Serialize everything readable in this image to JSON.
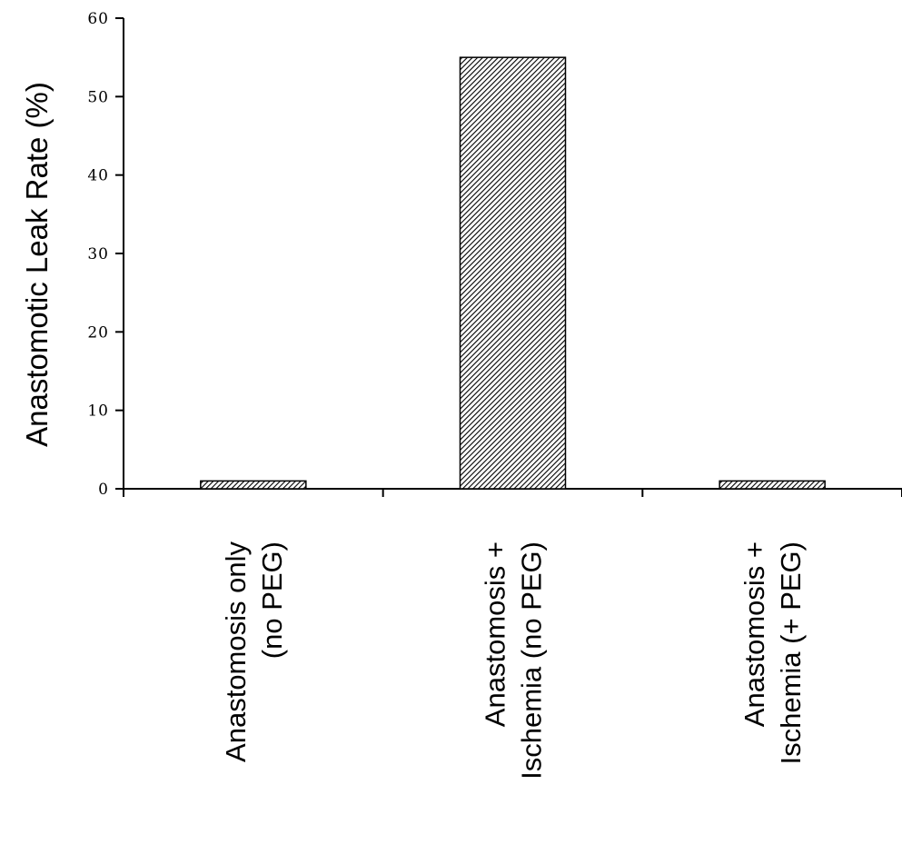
{
  "chart_data": {
    "type": "bar",
    "categories": [
      [
        "Anastomosis only",
        "(no PEG)"
      ],
      [
        "Anastomosis +",
        "Ischemia (no PEG)"
      ],
      [
        "Anastomosis +",
        "Ischemia (+ PEG)"
      ]
    ],
    "values": [
      1,
      55,
      1
    ],
    "title": "",
    "xlabel": "",
    "ylabel": "Anastomotic Leak Rate (%)",
    "ylim": [
      0,
      60
    ],
    "yticks": [
      0,
      10,
      20,
      30,
      40,
      50,
      60
    ],
    "bar_fill": "hatched",
    "grid": false,
    "legend": "none"
  },
  "colors": {
    "axis": "#000000",
    "bar_hatch": "#000000",
    "background": "#ffffff"
  }
}
